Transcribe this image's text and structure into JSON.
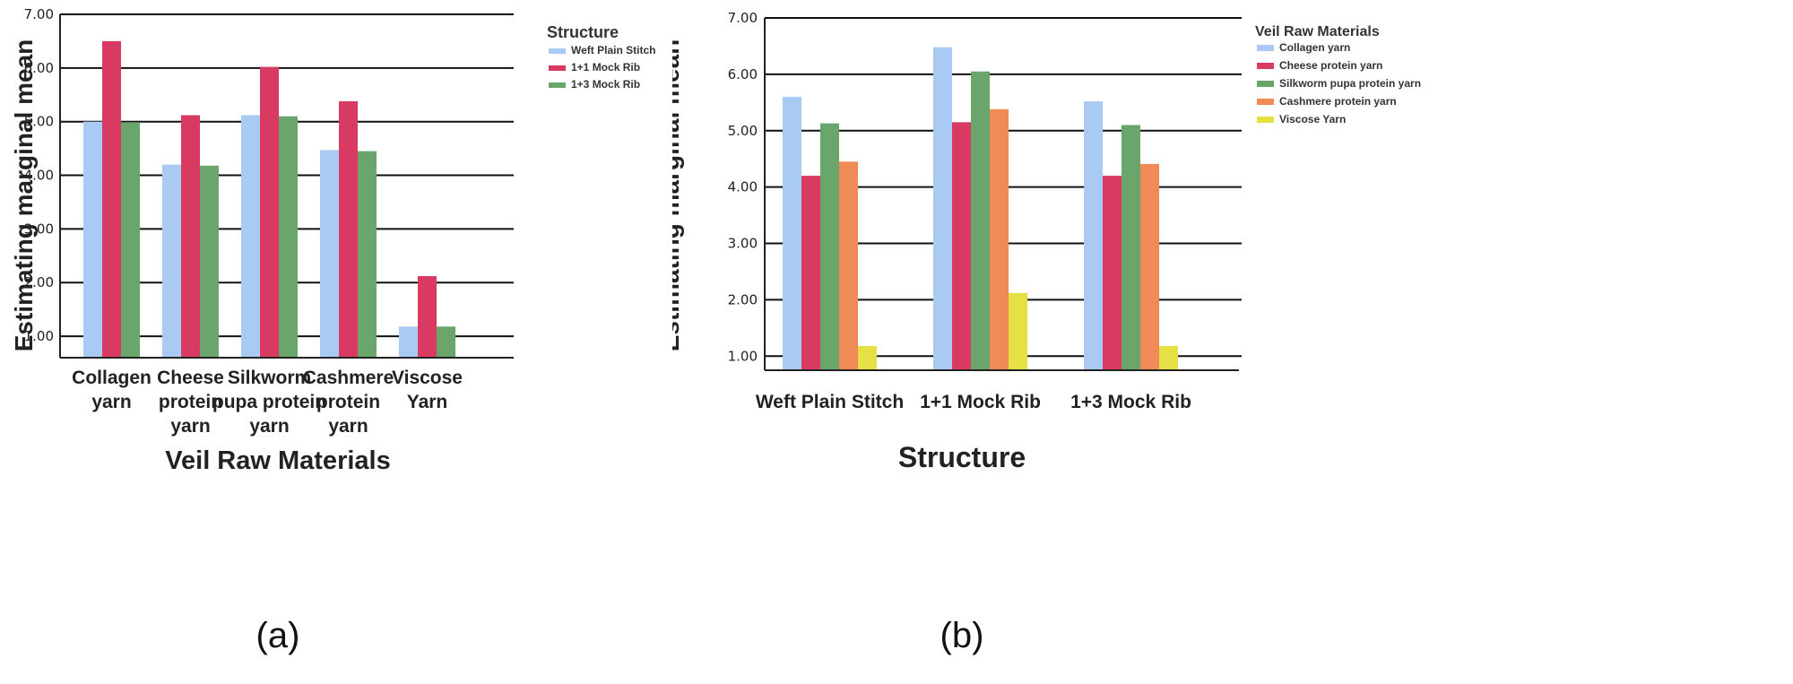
{
  "chart_data": [
    {
      "id": "a",
      "type": "bar",
      "panel_label": "(a)",
      "xlabel": "Veil Raw Materials",
      "ylabel": "Estimating marginal mean",
      "ylim": [
        0.6,
        7.0
      ],
      "yticks": [
        "1.00",
        "2.00",
        "3.00",
        "4.00",
        "5.00",
        "6.00",
        "7.00"
      ],
      "categories": [
        [
          "Collagen",
          "yarn"
        ],
        [
          "Cheese",
          "protein",
          "yarn"
        ],
        [
          "Silkworm",
          "pupa protein",
          "yarn"
        ],
        [
          "Cashmere",
          "protein",
          "yarn"
        ],
        [
          "Viscose",
          "Yarn"
        ]
      ],
      "legend_title": "Structure",
      "series": [
        {
          "name": "Weft Plain Stitch",
          "color": "#a9cbf3",
          "values": [
            5.0,
            4.2,
            5.12,
            4.47,
            1.18
          ]
        },
        {
          "name": "1+1 Mock Rib",
          "color": "#d83a62",
          "values": [
            6.5,
            5.12,
            6.02,
            5.38,
            2.12
          ]
        },
        {
          "name": "1+3 Mock Rib",
          "color": "#6aa66c",
          "values": [
            4.99,
            4.18,
            5.1,
            4.45,
            1.18
          ]
        }
      ]
    },
    {
      "id": "b",
      "type": "bar",
      "panel_label": "(b)",
      "xlabel": "Structure",
      "ylabel": "Estimating marginal mean",
      "ylim": [
        0.75,
        7.0
      ],
      "yticks": [
        "1.00",
        "2.00",
        "3.00",
        "4.00",
        "5.00",
        "6.00",
        "7.00"
      ],
      "categories": [
        [
          "Weft Plain Stitch"
        ],
        [
          "1+1 Mock Rib"
        ],
        [
          "1+3 Mock Rib"
        ]
      ],
      "legend_title": "Veil Raw Materials",
      "series": [
        {
          "name": "Collagen yarn",
          "color": "#a9cbf3",
          "values": [
            5.6,
            6.48,
            5.52
          ]
        },
        {
          "name": "Cheese protein yarn",
          "color": "#d83a62",
          "values": [
            4.2,
            5.15,
            4.2
          ]
        },
        {
          "name": "Silkworm pupa protein yarn",
          "color": "#6aa66c",
          "values": [
            5.13,
            6.05,
            5.1
          ]
        },
        {
          "name": "Cashmere protein yarn",
          "color": "#f08a57",
          "values": [
            4.45,
            5.38,
            4.41
          ]
        },
        {
          "name": "Viscose Yarn",
          "color": "#e5e046",
          "values": [
            1.18,
            2.12,
            1.18
          ]
        }
      ]
    }
  ]
}
